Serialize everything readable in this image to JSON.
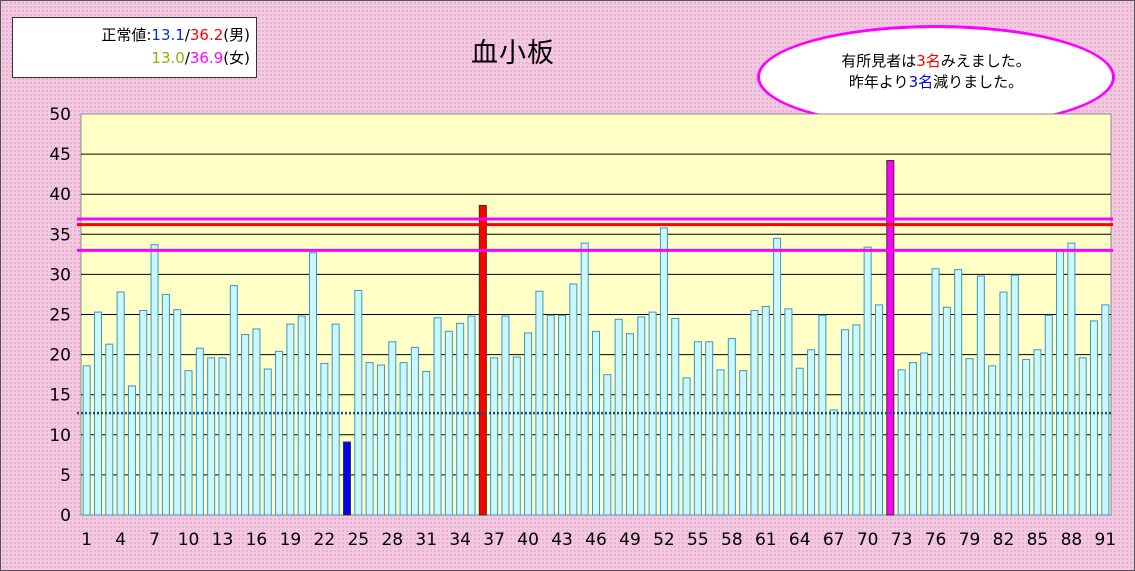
{
  "legend": {
    "label": "正常値:",
    "male_low": "13.1",
    "slash": "/",
    "male_high": "36.2",
    "male_label": "(男)",
    "female_low": "13.0",
    "female_high": "36.9",
    "female_label": "(女)"
  },
  "note": {
    "line1_pre": "有所見者は",
    "line1_num": "3名",
    "line1_post": "みえました。",
    "line2_pre": "昨年より",
    "line2_num": "3名",
    "line2_post": "減りました。"
  },
  "colors": {
    "plot_bg": "#ffffc6",
    "bar_fill": "#ccf7ff",
    "bar_stroke": "#3399cc",
    "low_bar": "#0000ff",
    "high_bar": "#ff0000",
    "peak_bar": "#ff00ff",
    "male_color": "#ff0000",
    "female_color": "#ff00ff",
    "male_low_color": "#0033cc",
    "female_low_color": "#99aa00",
    "lower_line": "#1f4e79"
  },
  "chart_data": {
    "type": "bar",
    "title": "血小板",
    "xlabel": "",
    "ylabel": "",
    "ylim": [
      0,
      50
    ],
    "yticks": [
      0,
      5,
      10,
      15,
      20,
      25,
      30,
      35,
      40,
      45,
      50
    ],
    "grid": true,
    "xtick_labels": [
      "1",
      "4",
      "7",
      "10",
      "13",
      "16",
      "19",
      "22",
      "25",
      "28",
      "31",
      "34",
      "37",
      "40",
      "43",
      "46",
      "49",
      "52",
      "55",
      "58",
      "61",
      "64",
      "67",
      "70",
      "73",
      "76",
      "79",
      "82",
      "85",
      "88",
      "91"
    ],
    "x": [
      1,
      2,
      3,
      4,
      5,
      6,
      7,
      8,
      9,
      10,
      11,
      12,
      13,
      14,
      15,
      16,
      17,
      18,
      19,
      20,
      21,
      22,
      23,
      24,
      25,
      26,
      27,
      28,
      29,
      30,
      31,
      32,
      33,
      34,
      35,
      36,
      37,
      38,
      39,
      40,
      41,
      42,
      43,
      44,
      45,
      46,
      47,
      48,
      49,
      50,
      51,
      52,
      53,
      54,
      55,
      56,
      57,
      58,
      59,
      60,
      61,
      62,
      63,
      64,
      65,
      66,
      67,
      68,
      69,
      70,
      71,
      72,
      73,
      74,
      75,
      76,
      77,
      78,
      79,
      80,
      81,
      82,
      83,
      84,
      85,
      86,
      87,
      88,
      89,
      90,
      91
    ],
    "values": [
      18.6,
      25.3,
      21.3,
      27.8,
      16.1,
      25.5,
      33.7,
      27.5,
      25.6,
      18.0,
      20.8,
      19.6,
      19.6,
      28.6,
      22.5,
      23.2,
      18.2,
      20.4,
      23.8,
      24.8,
      32.7,
      18.9,
      23.8,
      9.1,
      28.0,
      19.0,
      18.7,
      21.6,
      19.0,
      20.9,
      17.9,
      24.6,
      22.9,
      23.9,
      24.8,
      38.6,
      19.6,
      24.8,
      19.7,
      22.7,
      27.9,
      24.9,
      24.9,
      28.8,
      33.9,
      22.9,
      17.5,
      24.4,
      22.6,
      24.7,
      25.3,
      35.8,
      24.5,
      17.1,
      21.6,
      21.6,
      18.1,
      22.0,
      18.0,
      25.5,
      26.0,
      34.5,
      25.7,
      18.3,
      20.6,
      24.9,
      13.1,
      23.1,
      23.7,
      33.4,
      26.2,
      44.2,
      18.1,
      19.0,
      20.2,
      30.7,
      25.9,
      30.6,
      19.5,
      29.8,
      18.6,
      27.8,
      29.9,
      19.4,
      20.6,
      24.9,
      32.9,
      33.9,
      19.6,
      24.2,
      26.2
    ],
    "reference_lines": [
      {
        "value": 36.2,
        "color": "#ff0000"
      },
      {
        "value": 36.9,
        "color": "#ff00ff"
      },
      {
        "value": 33.0,
        "color": "#ff00ff"
      },
      {
        "value": 12.7,
        "color": "#1f4e79",
        "style": "dotted"
      }
    ],
    "highlighted": [
      {
        "x": 24,
        "color": "#0000ff"
      },
      {
        "x": 36,
        "color": "#ff0000"
      },
      {
        "x": 72,
        "color": "#ff00ff"
      }
    ]
  }
}
